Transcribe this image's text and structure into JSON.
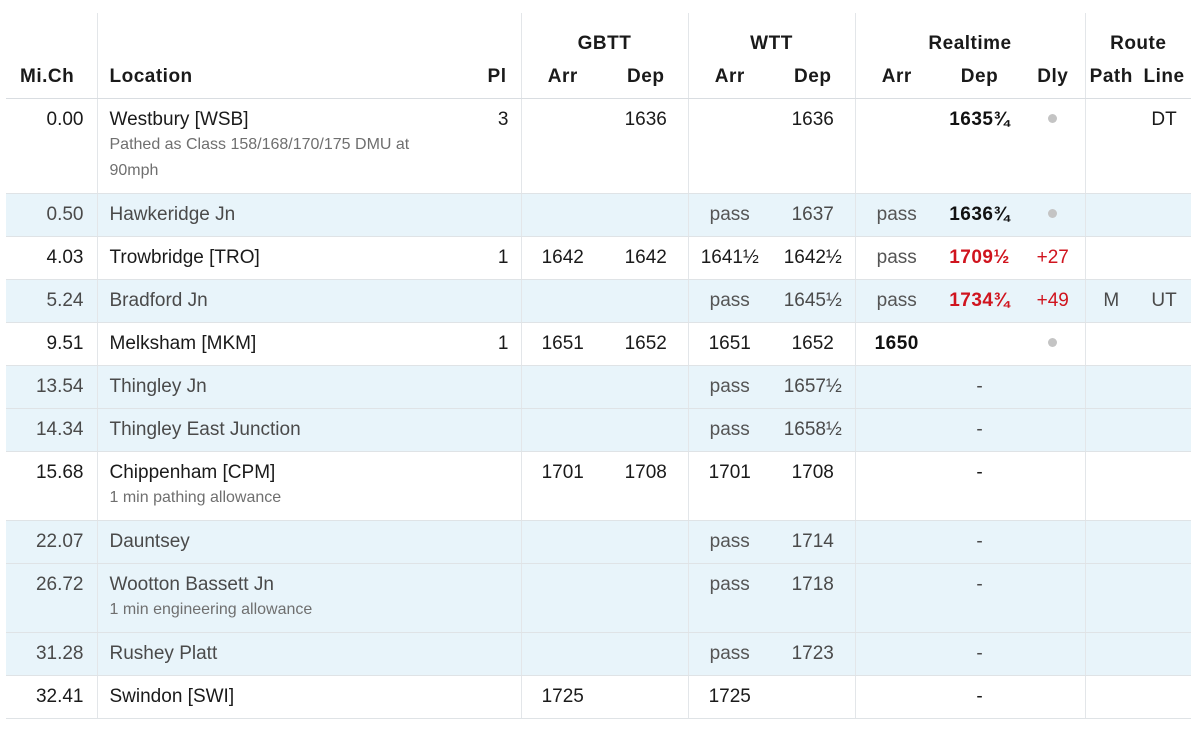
{
  "header": {
    "groups": {
      "gbtt": "GBTT",
      "wtt": "WTT",
      "realtime": "Realtime",
      "route": "Route"
    },
    "cols": {
      "mich": "Mi.Ch",
      "location": "Location",
      "pl": "Pl",
      "gbtt_arr": "Arr",
      "gbtt_dep": "Dep",
      "wtt_arr": "Arr",
      "wtt_dep": "Dep",
      "rt_arr": "Arr",
      "rt_dep": "Dep",
      "dly": "Dly",
      "path": "Path",
      "line": "Line"
    }
  },
  "rows": [
    {
      "type": "stop",
      "mich": "0.00",
      "location": "Westbury [WSB]",
      "note": "Pathed as Class 158/168/170/175 DMU at 90mph",
      "pl": "3",
      "gbtt_arr": "",
      "gbtt_dep": "1636",
      "wtt_arr": "",
      "wtt_dep": "1636",
      "rt_arr": "",
      "rt_dep": "1635¾",
      "dly": "",
      "dly_dot": true,
      "path": "",
      "line": "DT",
      "late": false
    },
    {
      "type": "pass",
      "mich": "0.50",
      "location": "Hawkeridge Jn",
      "note": "",
      "pl": "",
      "gbtt_arr": "",
      "gbtt_dep": "",
      "wtt_arr": "pass",
      "wtt_dep": "1637",
      "rt_arr": "pass",
      "rt_dep": "1636¾",
      "dly": "",
      "dly_dot": true,
      "path": "",
      "line": "",
      "late": false
    },
    {
      "type": "stop",
      "mich": "4.03",
      "location": "Trowbridge [TRO]",
      "note": "",
      "pl": "1",
      "gbtt_arr": "1642",
      "gbtt_dep": "1642",
      "wtt_arr": "1641½",
      "wtt_dep": "1642½",
      "rt_arr": "pass",
      "rt_dep": "1709½",
      "dly": "+27",
      "dly_dot": false,
      "path": "",
      "line": "",
      "late": true
    },
    {
      "type": "pass",
      "mich": "5.24",
      "location": "Bradford Jn",
      "note": "",
      "pl": "",
      "gbtt_arr": "",
      "gbtt_dep": "",
      "wtt_arr": "pass",
      "wtt_dep": "1645½",
      "rt_arr": "pass",
      "rt_dep": "1734¾",
      "dly": "+49",
      "dly_dot": false,
      "path": "M",
      "line": "UT",
      "late": true
    },
    {
      "type": "stop",
      "mich": "9.51",
      "location": "Melksham [MKM]",
      "note": "",
      "pl": "1",
      "gbtt_arr": "1651",
      "gbtt_dep": "1652",
      "wtt_arr": "1651",
      "wtt_dep": "1652",
      "rt_arr": "1650",
      "rt_dep": "",
      "dly": "",
      "dly_dot": true,
      "path": "",
      "line": "",
      "late": false,
      "rt_arr_bold": true
    },
    {
      "type": "pass",
      "mich": "13.54",
      "location": "Thingley Jn",
      "note": "",
      "pl": "",
      "gbtt_arr": "",
      "gbtt_dep": "",
      "wtt_arr": "pass",
      "wtt_dep": "1657½",
      "rt_arr": "",
      "rt_dep": "-",
      "dly": "",
      "dly_dot": false,
      "path": "",
      "line": "",
      "late": false
    },
    {
      "type": "pass",
      "mich": "14.34",
      "location": "Thingley East Junction",
      "note": "",
      "pl": "",
      "gbtt_arr": "",
      "gbtt_dep": "",
      "wtt_arr": "pass",
      "wtt_dep": "1658½",
      "rt_arr": "",
      "rt_dep": "-",
      "dly": "",
      "dly_dot": false,
      "path": "",
      "line": "",
      "late": false
    },
    {
      "type": "stop",
      "mich": "15.68",
      "location": "Chippenham [CPM]",
      "note": "1 min pathing allowance",
      "pl": "",
      "gbtt_arr": "1701",
      "gbtt_dep": "1708",
      "wtt_arr": "1701",
      "wtt_dep": "1708",
      "rt_arr": "",
      "rt_dep": "-",
      "dly": "",
      "dly_dot": false,
      "path": "",
      "line": "",
      "late": false
    },
    {
      "type": "pass",
      "mich": "22.07",
      "location": "Dauntsey",
      "note": "",
      "pl": "",
      "gbtt_arr": "",
      "gbtt_dep": "",
      "wtt_arr": "pass",
      "wtt_dep": "1714",
      "rt_arr": "",
      "rt_dep": "-",
      "dly": "",
      "dly_dot": false,
      "path": "",
      "line": "",
      "late": false
    },
    {
      "type": "pass",
      "mich": "26.72",
      "location": "Wootton Bassett Jn",
      "note": "1 min engineering allowance",
      "pl": "",
      "gbtt_arr": "",
      "gbtt_dep": "",
      "wtt_arr": "pass",
      "wtt_dep": "1718",
      "rt_arr": "",
      "rt_dep": "-",
      "dly": "",
      "dly_dot": false,
      "path": "",
      "line": "",
      "late": false
    },
    {
      "type": "pass",
      "mich": "31.28",
      "location": "Rushey Platt",
      "note": "",
      "pl": "",
      "gbtt_arr": "",
      "gbtt_dep": "",
      "wtt_arr": "pass",
      "wtt_dep": "1723",
      "rt_arr": "",
      "rt_dep": "-",
      "dly": "",
      "dly_dot": false,
      "path": "",
      "line": "",
      "late": false
    },
    {
      "type": "stop",
      "mich": "32.41",
      "location": "Swindon [SWI]",
      "note": "",
      "pl": "",
      "gbtt_arr": "1725",
      "gbtt_dep": "",
      "wtt_arr": "1725",
      "wtt_dep": "",
      "rt_arr": "",
      "rt_dep": "-",
      "dly": "",
      "dly_dot": false,
      "path": "",
      "line": "",
      "late": false
    }
  ]
}
